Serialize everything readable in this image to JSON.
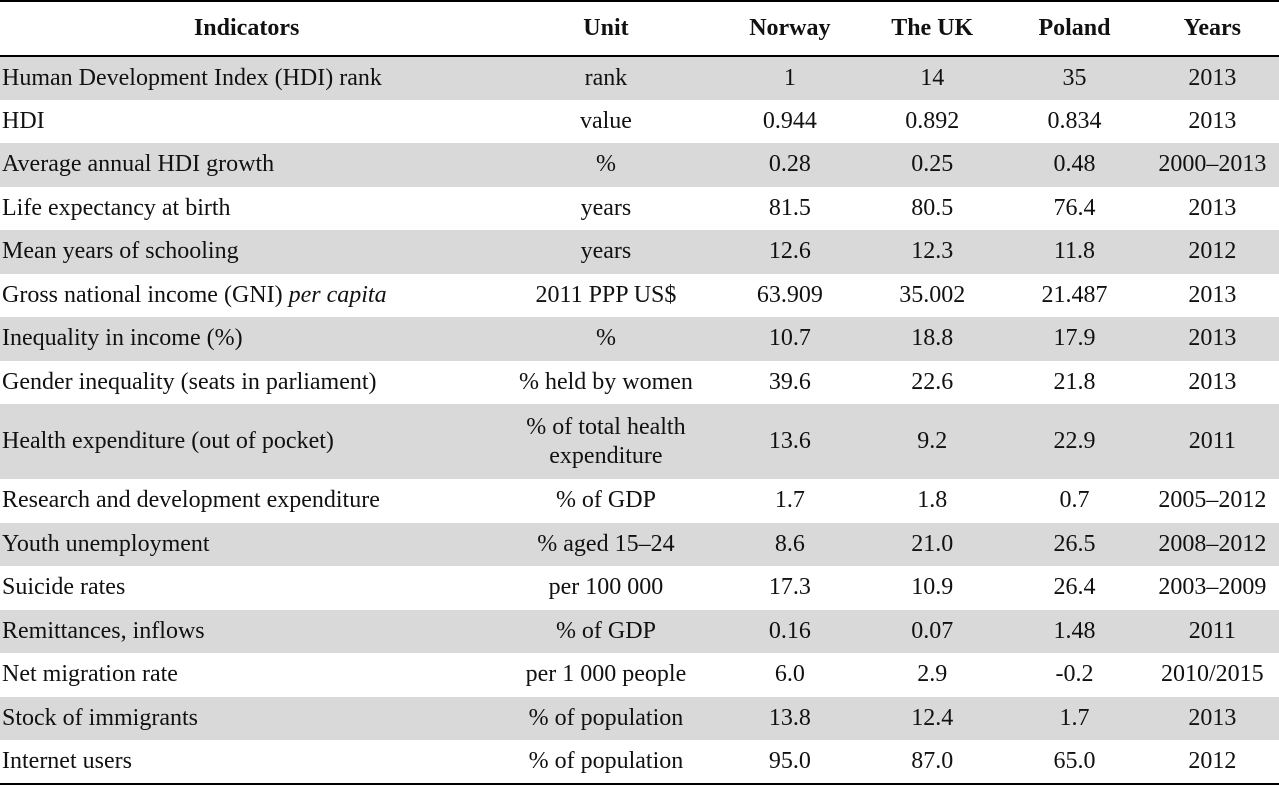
{
  "headers": {
    "indicators": "Indicators",
    "unit": "Unit",
    "norway": "Norway",
    "uk": "The UK",
    "poland": "Poland",
    "years": "Years"
  },
  "rows": [
    {
      "indicator": "Human Development Index (HDI) rank",
      "unit": "rank",
      "norway": "1",
      "uk": "14",
      "poland": "35",
      "years": "2013"
    },
    {
      "indicator": "HDI",
      "unit": "value",
      "norway": "0.944",
      "uk": "0.892",
      "poland": "0.834",
      "years": "2013"
    },
    {
      "indicator": "Average annual HDI growth",
      "unit": "%",
      "norway": "0.28",
      "uk": "0.25",
      "poland": "0.48",
      "years": "2000–2013"
    },
    {
      "indicator": "Life expectancy at birth",
      "unit": "years",
      "norway": "81.5",
      "uk": "80.5",
      "poland": "76.4",
      "years": "2013"
    },
    {
      "indicator": "Mean years of schooling",
      "unit": "years",
      "norway": "12.6",
      "uk": "12.3",
      "poland": "11.8",
      "years": "2012"
    },
    {
      "indicator": "Gross national income (GNI)",
      "indicator_italic": "per capita",
      "unit": "2011 PPP US$",
      "norway": "63.909",
      "uk": "35.002",
      "poland": "21.487",
      "years": "2013"
    },
    {
      "indicator": "Inequality in income (%)",
      "unit": "%",
      "norway": "10.7",
      "uk": "18.8",
      "poland": "17.9",
      "years": "2013"
    },
    {
      "indicator": "Gender inequality (seats in parliament)",
      "unit": "% held by women",
      "norway": "39.6",
      "uk": "22.6",
      "poland": "21.8",
      "years": "2013"
    },
    {
      "indicator": "Health expenditure (out of pocket)",
      "unit_line1": "% of total health",
      "unit_line2": "expenditure",
      "norway": "13.6",
      "uk": "9.2",
      "poland": "22.9",
      "years": "2011"
    },
    {
      "indicator": "Research and development expenditure",
      "unit": "% of GDP",
      "norway": "1.7",
      "uk": "1.8",
      "poland": "0.7",
      "years": "2005–2012"
    },
    {
      "indicator": "Youth unemployment",
      "unit": "% aged 15–24",
      "norway": "8.6",
      "uk": "21.0",
      "poland": "26.5",
      "years": "2008–2012"
    },
    {
      "indicator": "Suicide rates",
      "unit": "per 100 000",
      "norway": "17.3",
      "uk": "10.9",
      "poland": "26.4",
      "years": "2003–2009"
    },
    {
      "indicator": "Remittances, inflows",
      "unit": "% of GDP",
      "norway": "0.16",
      "uk": "0.07",
      "poland": "1.48",
      "years": "2011"
    },
    {
      "indicator": "Net migration rate",
      "unit": "per 1 000 people",
      "norway": "6.0",
      "uk": "2.9",
      "poland": "-0.2",
      "years": "2010/2015"
    },
    {
      "indicator": "Stock of immigrants",
      "unit": "% of population",
      "norway": "13.8",
      "uk": "12.4",
      "poland": "1.7",
      "years": "2013"
    },
    {
      "indicator": "Internet users",
      "unit": "% of population",
      "norway": "95.0",
      "uk": "87.0",
      "poland": "65.0",
      "years": "2012"
    }
  ]
}
